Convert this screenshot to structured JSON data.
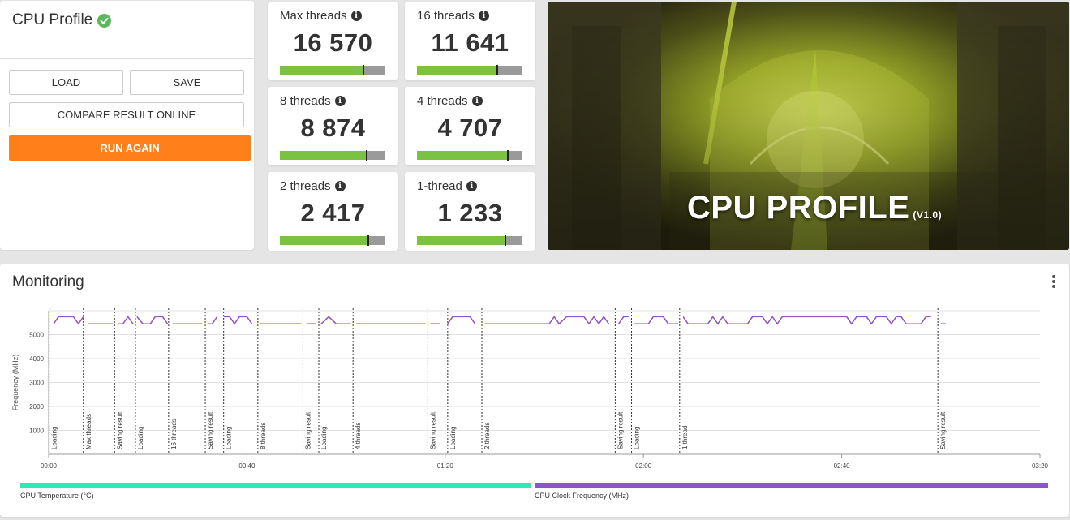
{
  "left_panel": {
    "title": "CPU Profile",
    "load_label": "LOAD",
    "save_label": "SAVE",
    "compare_label": "COMPARE RESULT ONLINE",
    "run_again_label": "RUN AGAIN"
  },
  "scores": [
    {
      "label": "Max threads",
      "value": "16 570",
      "fill": 0.79
    },
    {
      "label": "16 threads",
      "value": "11 641",
      "fill": 0.76
    },
    {
      "label": "8 threads",
      "value": "8 874",
      "fill": 0.82
    },
    {
      "label": "4 threads",
      "value": "4 707",
      "fill": 0.86
    },
    {
      "label": "2 threads",
      "value": "2 417",
      "fill": 0.84
    },
    {
      "label": "1-thread",
      "value": "1 233",
      "fill": 0.84
    }
  ],
  "hero": {
    "title": "CPU PROFILE",
    "version": "(V1.0)"
  },
  "monitoring": {
    "title": "Monitoring",
    "legend": [
      {
        "label": "CPU Temperature (°C)",
        "color": "#2ee8b6"
      },
      {
        "label": "CPU Clock Frequency (MHz)",
        "color": "#8e54c9"
      }
    ]
  },
  "colors": {
    "accent": "#ff7f1a",
    "score_fill": "#7bc142",
    "score_bg": "#9a9a9a",
    "check": "#5cb85c"
  },
  "chart_data": {
    "type": "line",
    "ylabel": "Frequency (MHz)",
    "ylim": [
      0,
      6000
    ],
    "yticks": [
      1000,
      2000,
      3000,
      4000,
      5000
    ],
    "xlim": [
      0,
      200
    ],
    "xtick_labels": [
      "00:00",
      "00:40",
      "01:20",
      "02:00",
      "02:40",
      "03:20"
    ],
    "xticks": [
      0,
      40,
      80,
      120,
      160,
      200
    ],
    "phases": [
      {
        "t": 0.1,
        "label": "Loading"
      },
      {
        "t": 7,
        "label": "Max threads"
      },
      {
        "t": 13.3,
        "label": "Saving result"
      },
      {
        "t": 17.5,
        "label": "Loading"
      },
      {
        "t": 24.2,
        "label": "16 threads"
      },
      {
        "t": 31.6,
        "label": "Saving result"
      },
      {
        "t": 35.3,
        "label": "Loading"
      },
      {
        "t": 42.2,
        "label": "8 threads"
      },
      {
        "t": 51.3,
        "label": "Saving result"
      },
      {
        "t": 54.5,
        "label": "Loading"
      },
      {
        "t": 61.4,
        "label": "4 threads"
      },
      {
        "t": 76.5,
        "label": "Saving result"
      },
      {
        "t": 80.5,
        "label": "Loading"
      },
      {
        "t": 87.4,
        "label": "2 threads"
      },
      {
        "t": 114.3,
        "label": "Saving result"
      },
      {
        "t": 117.6,
        "label": "Loading"
      },
      {
        "t": 127.3,
        "label": "1 thread"
      },
      {
        "t": 179.4,
        "label": "Saving result"
      }
    ],
    "series": [
      {
        "name": "CPU Clock Frequency (MHz)",
        "segments": [
          [
            [
              1,
              5450
            ],
            [
              2,
              5750
            ],
            [
              5,
              5750
            ],
            [
              6,
              5450
            ],
            [
              7,
              5750
            ]
          ],
          [
            [
              8,
              5450
            ],
            [
              13,
              5450
            ]
          ],
          [
            [
              14,
              5450
            ],
            [
              15,
              5450
            ],
            [
              16,
              5750
            ],
            [
              17,
              5450
            ]
          ],
          [
            [
              17.8,
              5750
            ],
            [
              19,
              5450
            ],
            [
              20.5,
              5450
            ],
            [
              21.5,
              5750
            ],
            [
              23,
              5750
            ],
            [
              24,
              5450
            ]
          ],
          [
            [
              25,
              5450
            ],
            [
              31,
              5450
            ]
          ],
          [
            [
              32,
              5450
            ],
            [
              33,
              5450
            ],
            [
              34,
              5750
            ]
          ],
          [
            [
              35.3,
              5750
            ],
            [
              36.5,
              5750
            ],
            [
              37.5,
              5450
            ],
            [
              38.5,
              5750
            ],
            [
              40,
              5750
            ],
            [
              41,
              5450
            ]
          ],
          [
            [
              42.5,
              5450
            ],
            [
              51,
              5450
            ]
          ],
          [
            [
              52,
              5450
            ],
            [
              54,
              5450
            ]
          ],
          [
            [
              55,
              5450
            ],
            [
              56.5,
              5750
            ],
            [
              58,
              5450
            ],
            [
              61,
              5450
            ]
          ],
          [
            [
              62,
              5450
            ],
            [
              76,
              5450
            ]
          ],
          [
            [
              77,
              5450
            ],
            [
              79,
              5450
            ]
          ],
          [
            [
              80.5,
              5450
            ],
            [
              81.5,
              5750
            ],
            [
              85,
              5750
            ],
            [
              86,
              5450
            ]
          ],
          [
            [
              88,
              5450
            ],
            [
              101,
              5450
            ],
            [
              102,
              5750
            ],
            [
              103,
              5450
            ],
            [
              104.5,
              5750
            ],
            [
              108,
              5750
            ],
            [
              109,
              5450
            ],
            [
              110,
              5750
            ],
            [
              111,
              5450
            ],
            [
              112,
              5750
            ],
            [
              113,
              5450
            ]
          ],
          [
            [
              115,
              5450
            ],
            [
              116,
              5750
            ],
            [
              117,
              5750
            ]
          ],
          [
            [
              118,
              5450
            ],
            [
              121,
              5450
            ],
            [
              122,
              5750
            ],
            [
              124,
              5750
            ],
            [
              125,
              5450
            ],
            [
              127,
              5450
            ]
          ],
          [
            [
              128,
              5750
            ],
            [
              129,
              5450
            ],
            [
              133,
              5450
            ],
            [
              134,
              5750
            ],
            [
              135,
              5450
            ],
            [
              136,
              5750
            ],
            [
              137,
              5450
            ],
            [
              141,
              5450
            ],
            [
              142,
              5750
            ],
            [
              144,
              5750
            ],
            [
              145,
              5450
            ],
            [
              146,
              5750
            ],
            [
              147,
              5450
            ],
            [
              148,
              5750
            ],
            [
              150,
              5750
            ],
            [
              151,
              5750
            ],
            [
              160,
              5750
            ],
            [
              161,
              5750
            ],
            [
              162,
              5450
            ],
            [
              163,
              5750
            ],
            [
              165,
              5750
            ],
            [
              166,
              5450
            ],
            [
              167,
              5750
            ],
            [
              169,
              5750
            ],
            [
              170,
              5450
            ],
            [
              171,
              5750
            ],
            [
              172,
              5750
            ],
            [
              173,
              5450
            ],
            [
              176,
              5450
            ],
            [
              177,
              5750
            ],
            [
              178,
              5750
            ]
          ],
          [
            [
              180,
              5450
            ],
            [
              181,
              5450
            ]
          ]
        ]
      }
    ],
    "grid": true
  }
}
